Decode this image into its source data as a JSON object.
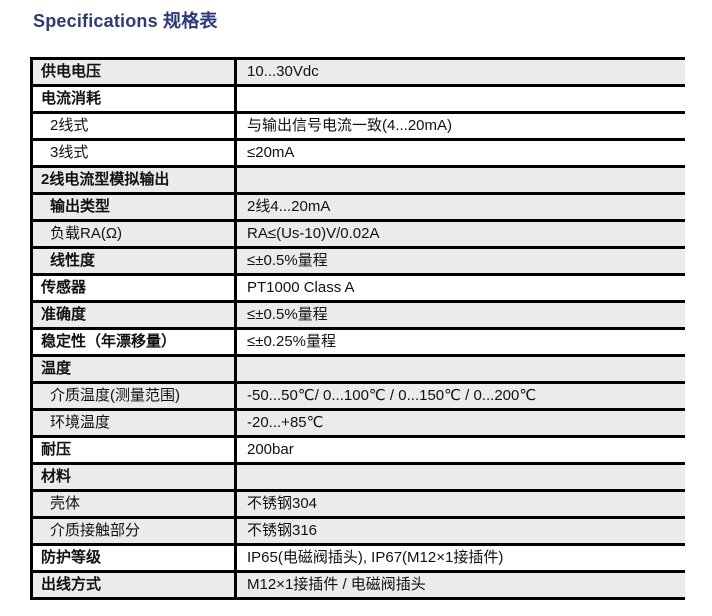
{
  "page": {
    "title": "Specifications 规格表"
  },
  "colors": {
    "title_text": "#2b3a7f",
    "row_shaded_bg": "#ebebeb",
    "row_plain_bg": "#ffffff",
    "border": "#000000",
    "body_text": "#111111"
  },
  "table": {
    "rows": [
      {
        "label": "供电电压",
        "value": "10...30Vdc",
        "indent": false,
        "bold": true,
        "shaded": true
      },
      {
        "label": "电流消耗",
        "value": "",
        "indent": false,
        "bold": true,
        "shaded": false
      },
      {
        "label": "2线式",
        "value": "与输出信号电流一致(4...20mA)",
        "indent": true,
        "bold": false,
        "shaded": false
      },
      {
        "label": "3线式",
        "value": "≤20mA",
        "indent": true,
        "bold": false,
        "shaded": false
      },
      {
        "label": "2线电流型模拟输出",
        "value": "",
        "indent": false,
        "bold": true,
        "shaded": true
      },
      {
        "label": "输出类型",
        "value": "2线4...20mA",
        "indent": true,
        "bold": true,
        "shaded": true
      },
      {
        "label": "负载RA(Ω)",
        "value": "RA≤(Us-10)V/0.02A",
        "indent": true,
        "bold": false,
        "shaded": true
      },
      {
        "label": "线性度",
        "value": "≤±0.5%量程",
        "indent": true,
        "bold": true,
        "shaded": true
      },
      {
        "label": "传感器",
        "value": "PT1000 Class A",
        "indent": false,
        "bold": true,
        "shaded": false
      },
      {
        "label": "准确度",
        "value": "≤±0.5%量程",
        "indent": false,
        "bold": true,
        "shaded": true
      },
      {
        "label": "稳定性（年漂移量）",
        "value": "≤±0.25%量程",
        "indent": false,
        "bold": true,
        "shaded": false
      },
      {
        "label": "温度",
        "value": "",
        "indent": false,
        "bold": true,
        "shaded": true
      },
      {
        "label": "介质温度(测量范围)",
        "value": "-50...50℃/ 0...100℃ / 0...150℃ / 0...200℃",
        "indent": true,
        "bold": false,
        "shaded": true
      },
      {
        "label": "环境温度",
        "value": "-20...+85℃",
        "indent": true,
        "bold": false,
        "shaded": true
      },
      {
        "label": "耐压",
        "value": "200bar",
        "indent": false,
        "bold": true,
        "shaded": false
      },
      {
        "label": "材料",
        "value": "",
        "indent": false,
        "bold": true,
        "shaded": true
      },
      {
        "label": "壳体",
        "value": "不锈钢304",
        "indent": true,
        "bold": false,
        "shaded": true
      },
      {
        "label": "介质接触部分",
        "value": "不锈钢316",
        "indent": true,
        "bold": false,
        "shaded": true
      },
      {
        "label": "防护等级",
        "value": "IP65(电磁阀插头), IP67(M12×1接插件)",
        "indent": false,
        "bold": true,
        "shaded": false
      },
      {
        "label": "出线方式",
        "value": "M12×1接插件 / 电磁阀插头",
        "indent": false,
        "bold": true,
        "shaded": true
      }
    ]
  }
}
